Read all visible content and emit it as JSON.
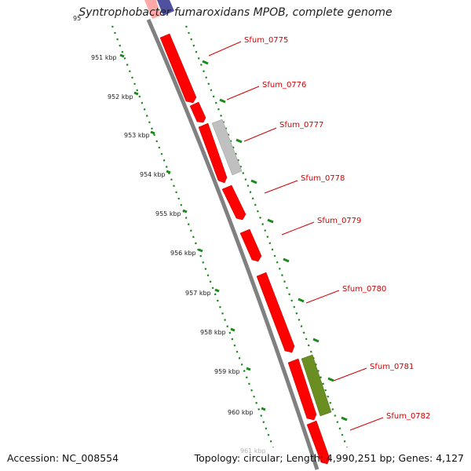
{
  "title": "Syntrophobacter fumaroxidans MPOB, complete genome",
  "footer": {
    "accession": "Accession: NC_008554",
    "topology": "Topology: circular; Length: 4,990,251 bp; Genes: 4,127"
  },
  "scale": {
    "top_partial_label": "95",
    "bottom_partial_label": "961 kbp",
    "ticks": [
      "951 kbp",
      "952 kbp",
      "953 kbp",
      "954 kbp",
      "955 kbp",
      "956 kbp",
      "957 kbp",
      "958 kbp",
      "959 kbp",
      "960 kbp"
    ]
  },
  "colors": {
    "cds": "#ff0000",
    "pseudo": "#c0c0c0",
    "rna": "#6b8e23",
    "upstream": "#5050a0",
    "backbone": "#808080",
    "scale_ticks": "#1a8a1a",
    "label": "#d40000"
  },
  "genes": [
    {
      "label": "Sfum_0775",
      "type": "cds"
    },
    {
      "label": "Sfum_0776",
      "type": "cds"
    },
    {
      "label": "Sfum_0777",
      "type": "cds"
    },
    {
      "label": "Sfum_0778",
      "type": "cds"
    },
    {
      "label": "Sfum_0779",
      "type": "cds"
    },
    {
      "label": "Sfum_0780",
      "type": "cds"
    },
    {
      "label": "Sfum_0781",
      "type": "cds"
    },
    {
      "label": "Sfum_0782",
      "type": "cds"
    }
  ]
}
